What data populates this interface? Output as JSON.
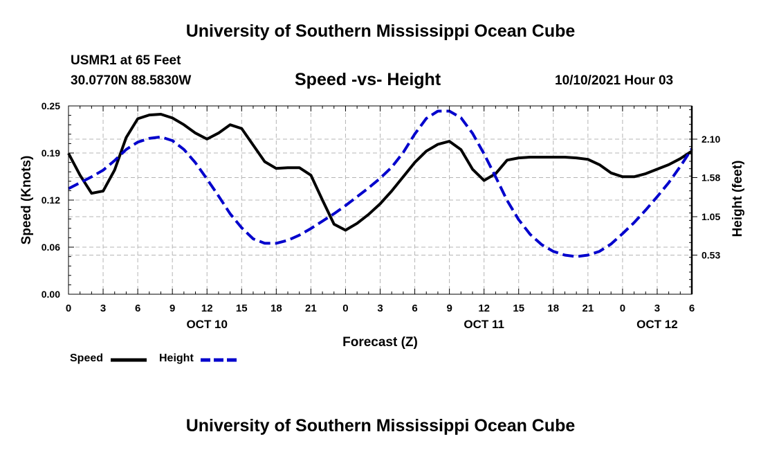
{
  "header": {
    "title": "University of Southern Mississippi Ocean Cube",
    "station": "USMR1 at 65 Feet",
    "coords": "30.0770N  88.5830W",
    "subtitle": "Speed -vs- Height",
    "datetime": "10/10/2021 Hour 03"
  },
  "footer": {
    "title": "University of Southern Mississippi Ocean Cube"
  },
  "legend": {
    "speed_label": "Speed",
    "height_label": "Height"
  },
  "colors": {
    "speed": "#000000",
    "height": "#0000cc",
    "grid": "#b4b4b4"
  },
  "chart_data": {
    "type": "line",
    "xlabel": "Forecast (Z)",
    "ylabel_left": "Speed (Knots)",
    "ylabel_right": "Height (feet)",
    "x_range_hours": [
      0,
      54
    ],
    "x_ticks": [
      {
        "h": 0,
        "label": "0"
      },
      {
        "h": 3,
        "label": "3"
      },
      {
        "h": 6,
        "label": "6"
      },
      {
        "h": 9,
        "label": "9"
      },
      {
        "h": 12,
        "label": "12"
      },
      {
        "h": 15,
        "label": "15"
      },
      {
        "h": 18,
        "label": "18"
      },
      {
        "h": 21,
        "label": "21"
      },
      {
        "h": 24,
        "label": "0"
      },
      {
        "h": 27,
        "label": "3"
      },
      {
        "h": 30,
        "label": "6"
      },
      {
        "h": 33,
        "label": "9"
      },
      {
        "h": 36,
        "label": "12"
      },
      {
        "h": 39,
        "label": "15"
      },
      {
        "h": 42,
        "label": "18"
      },
      {
        "h": 45,
        "label": "21"
      },
      {
        "h": 48,
        "label": "0"
      },
      {
        "h": 51,
        "label": "3"
      },
      {
        "h": 54,
        "label": "6"
      }
    ],
    "date_labels": [
      {
        "h": 12,
        "label": "OCT 10"
      },
      {
        "h": 36,
        "label": "OCT 11"
      },
      {
        "h": 51,
        "label": "OCT 12"
      }
    ],
    "y_left": {
      "range": [
        0,
        0.25
      ],
      "ticks": [
        "0.00",
        "0.06",
        "0.12",
        "0.19",
        "0.25"
      ],
      "tick_values": [
        0,
        0.0625,
        0.125,
        0.1875,
        0.25
      ]
    },
    "y_right": {
      "range": [
        0.0,
        2.55
      ],
      "ticks": [
        "0.53",
        "1.05",
        "1.58",
        "2.10"
      ],
      "tick_values": [
        0.53,
        1.05,
        1.58,
        2.1
      ]
    },
    "series": [
      {
        "name": "Speed",
        "axis": "left",
        "style": "solid",
        "points": [
          [
            0,
            0.187
          ],
          [
            1,
            0.158
          ],
          [
            2,
            0.134
          ],
          [
            3,
            0.137
          ],
          [
            4,
            0.165
          ],
          [
            5,
            0.208
          ],
          [
            6,
            0.233
          ],
          [
            7,
            0.238
          ],
          [
            8,
            0.239
          ],
          [
            9,
            0.234
          ],
          [
            10,
            0.225
          ],
          [
            11,
            0.214
          ],
          [
            12,
            0.206
          ],
          [
            13,
            0.214
          ],
          [
            14,
            0.225
          ],
          [
            15,
            0.22
          ],
          [
            16,
            0.198
          ],
          [
            17,
            0.176
          ],
          [
            18,
            0.167
          ],
          [
            19,
            0.168
          ],
          [
            20,
            0.168
          ],
          [
            21,
            0.158
          ],
          [
            22,
            0.125
          ],
          [
            23,
            0.093
          ],
          [
            24,
            0.085
          ],
          [
            25,
            0.094
          ],
          [
            26,
            0.106
          ],
          [
            27,
            0.12
          ],
          [
            28,
            0.137
          ],
          [
            29,
            0.156
          ],
          [
            30,
            0.175
          ],
          [
            31,
            0.19
          ],
          [
            32,
            0.199
          ],
          [
            33,
            0.203
          ],
          [
            34,
            0.192
          ],
          [
            35,
            0.166
          ],
          [
            36,
            0.151
          ],
          [
            37,
            0.16
          ],
          [
            38,
            0.178
          ],
          [
            39,
            0.181
          ],
          [
            40,
            0.182
          ],
          [
            41,
            0.182
          ],
          [
            42,
            0.182
          ],
          [
            43,
            0.182
          ],
          [
            44,
            0.181
          ],
          [
            45,
            0.179
          ],
          [
            46,
            0.172
          ],
          [
            47,
            0.161
          ],
          [
            48,
            0.156
          ],
          [
            49,
            0.156
          ],
          [
            50,
            0.16
          ],
          [
            51,
            0.166
          ],
          [
            52,
            0.172
          ],
          [
            53,
            0.18
          ],
          [
            54,
            0.19
          ]
        ]
      },
      {
        "name": "Height",
        "axis": "right",
        "style": "dashed",
        "points": [
          [
            0,
            1.43
          ],
          [
            1,
            1.51
          ],
          [
            2,
            1.59
          ],
          [
            3,
            1.68
          ],
          [
            4,
            1.81
          ],
          [
            5,
            1.96
          ],
          [
            6,
            2.06
          ],
          [
            7,
            2.11
          ],
          [
            8,
            2.13
          ],
          [
            9,
            2.08
          ],
          [
            10,
            1.96
          ],
          [
            11,
            1.78
          ],
          [
            12,
            1.56
          ],
          [
            13,
            1.33
          ],
          [
            14,
            1.09
          ],
          [
            15,
            0.9
          ],
          [
            16,
            0.75
          ],
          [
            17,
            0.69
          ],
          [
            18,
            0.69
          ],
          [
            19,
            0.73
          ],
          [
            20,
            0.8
          ],
          [
            21,
            0.89
          ],
          [
            22,
            0.99
          ],
          [
            23,
            1.09
          ],
          [
            24,
            1.2
          ],
          [
            25,
            1.32
          ],
          [
            26,
            1.44
          ],
          [
            27,
            1.57
          ],
          [
            28,
            1.72
          ],
          [
            29,
            1.92
          ],
          [
            30,
            2.17
          ],
          [
            31,
            2.38
          ],
          [
            32,
            2.48
          ],
          [
            33,
            2.48
          ],
          [
            34,
            2.39
          ],
          [
            35,
            2.18
          ],
          [
            36,
            1.9
          ],
          [
            37,
            1.59
          ],
          [
            38,
            1.27
          ],
          [
            39,
            1.01
          ],
          [
            40,
            0.81
          ],
          [
            41,
            0.67
          ],
          [
            42,
            0.58
          ],
          [
            43,
            0.53
          ],
          [
            44,
            0.51
          ],
          [
            45,
            0.53
          ],
          [
            46,
            0.58
          ],
          [
            47,
            0.68
          ],
          [
            48,
            0.82
          ],
          [
            49,
            0.97
          ],
          [
            50,
            1.14
          ],
          [
            51,
            1.32
          ],
          [
            52,
            1.51
          ],
          [
            53,
            1.73
          ],
          [
            54,
            1.97
          ]
        ]
      }
    ]
  }
}
